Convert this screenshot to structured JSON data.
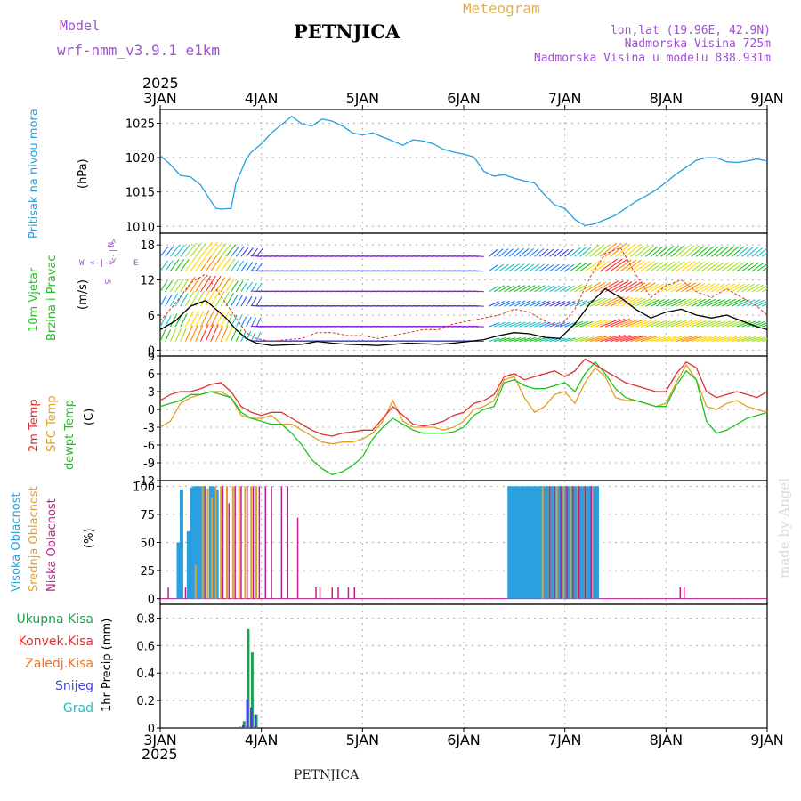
{
  "header": {
    "model_label": "Model",
    "model_name": "wrf-nmm_v3.9.1 e1km",
    "station": "PETNJICA",
    "meteogram_label": "Meteogram",
    "coords": "lon,lat (19.96E, 42.9N)",
    "elevation": "Nadmorska Visina 725m",
    "model_elevation": "Nadmorska Visina u modelu 838.931m",
    "year_top": "2025",
    "year_bottom": "2025",
    "footer_station": "PETNJICA",
    "credit": "made by Angel"
  },
  "legend": {
    "wind_dir": {
      "n": "N",
      "w": "W",
      "e": "E",
      "s": "S",
      "arrow_h": "<-|->",
      "arrow_v": "<-|->"
    }
  },
  "colors": {
    "pressure": "#22a0e0",
    "wind_speed": "#000000",
    "gust": "#e03020",
    "t2m": "#e03030",
    "sfc": "#e0a020",
    "dewpt": "#20c020",
    "cloud_high": "#2aa0e0",
    "cloud_mid": "#e0a030",
    "cloud_low": "#c0208a",
    "total_precip": "#20a050",
    "conv_precip": "#e03030",
    "frz_precip": "#f07020",
    "snow": "#4040e0",
    "hail": "#20c0c0",
    "model_text": "#a050d0",
    "meteogram_text": "#e0b050"
  },
  "chart_data": [
    {
      "id": "pressure",
      "type": "line",
      "ylabel_main": "Pritisak na nivou mora",
      "ylabel_unit": "(hPa)",
      "x_range": [
        0,
        6
      ],
      "x_ticks": [
        "3JAN",
        "4JAN",
        "5JAN",
        "6JAN",
        "7JAN",
        "8JAN",
        "9JAN"
      ],
      "ylim": [
        1009,
        1027
      ],
      "y_ticks": [
        1010,
        1015,
        1020,
        1025
      ],
      "grid": true,
      "series": [
        {
          "x": [
            0.0,
            0.1,
            0.2,
            0.3,
            0.4,
            0.5,
            0.55,
            0.6,
            0.7,
            0.75,
            0.8,
            0.85,
            0.9,
            1.0,
            1.1,
            1.2,
            1.3,
            1.4,
            1.5,
            1.6,
            1.7,
            1.8,
            1.9,
            2.0,
            2.1,
            2.2,
            2.3,
            2.4,
            2.5,
            2.6,
            2.7,
            2.8,
            2.9,
            3.0,
            3.1,
            3.2,
            3.3,
            3.4,
            3.5,
            3.6,
            3.7,
            3.8,
            3.9,
            4.0,
            4.1,
            4.2,
            4.3,
            4.4,
            4.5,
            4.6,
            4.7,
            4.8,
            4.9,
            5.0,
            5.1,
            5.2,
            5.3,
            5.4,
            5.5,
            5.6,
            5.7,
            5.8,
            5.9,
            6.0
          ],
          "y": [
            1020.3,
            1019.0,
            1017.4,
            1017.2,
            1016.0,
            1013.7,
            1012.6,
            1012.5,
            1012.6,
            1016.4,
            1018.0,
            1019.8,
            1020.8,
            1022.0,
            1023.6,
            1024.8,
            1026.0,
            1024.9,
            1024.6,
            1025.6,
            1025.3,
            1024.6,
            1023.6,
            1023.3,
            1023.6,
            1023.0,
            1022.4,
            1021.8,
            1022.6,
            1022.4,
            1022.0,
            1021.2,
            1020.8,
            1020.5,
            1020.1,
            1018.0,
            1017.3,
            1017.5,
            1017.0,
            1016.6,
            1016.3,
            1014.6,
            1013.1,
            1012.6,
            1011.0,
            1010.1,
            1010.4,
            1011.0,
            1011.6,
            1012.6,
            1013.6,
            1014.4,
            1015.3,
            1016.4,
            1017.6,
            1018.6,
            1019.6,
            1020.0,
            1020.0,
            1019.4,
            1019.3,
            1019.5,
            1019.8,
            1019.5
          ],
          "color": "#22a0e0"
        }
      ]
    },
    {
      "id": "wind",
      "type": "line",
      "ylabel_main": "10m Vjetar",
      "ylabel_sub": "Brzina i Pravac",
      "ylabel_unit": "(m/s)",
      "x_range": [
        0,
        6
      ],
      "ylim": [
        -1,
        20
      ],
      "y_ticks": [
        0,
        6,
        12,
        18
      ],
      "grid": true,
      "series": [
        {
          "name": "speed",
          "x": [
            0.0,
            0.15,
            0.3,
            0.45,
            0.55,
            0.65,
            0.75,
            0.85,
            0.95,
            1.1,
            1.25,
            1.4,
            1.55,
            1.7,
            1.85,
            2.0,
            2.15,
            2.3,
            2.45,
            2.6,
            2.75,
            2.9,
            3.05,
            3.2,
            3.35,
            3.5,
            3.65,
            3.8,
            3.95,
            4.1,
            4.25,
            4.4,
            4.55,
            4.7,
            4.85,
            5.0,
            5.15,
            5.3,
            5.45,
            5.6,
            5.75,
            5.9,
            6.0
          ],
          "y": [
            3.5,
            5.0,
            7.5,
            8.5,
            7.0,
            5.5,
            3.5,
            2.0,
            1.2,
            0.8,
            0.9,
            1.0,
            1.5,
            1.2,
            1.0,
            0.9,
            0.8,
            1.0,
            1.2,
            1.1,
            1.0,
            1.2,
            1.5,
            1.8,
            2.5,
            3.0,
            2.8,
            2.2,
            2.0,
            4.5,
            8.0,
            10.5,
            9.0,
            7.0,
            5.5,
            6.5,
            7.0,
            6.0,
            5.5,
            6.0,
            5.0,
            4.0,
            3.5
          ]
        },
        {
          "name": "gust",
          "x": [
            0.0,
            0.15,
            0.3,
            0.45,
            0.55,
            0.65,
            0.75,
            0.85,
            0.95,
            1.1,
            1.25,
            1.4,
            1.55,
            1.7,
            1.85,
            2.0,
            2.15,
            2.3,
            2.45,
            2.6,
            2.75,
            2.9,
            3.05,
            3.2,
            3.35,
            3.5,
            3.65,
            3.8,
            3.95,
            4.1,
            4.25,
            4.4,
            4.55,
            4.7,
            4.85,
            5.0,
            5.15,
            5.3,
            5.45,
            5.6,
            5.75,
            5.9,
            6.0
          ],
          "y": [
            5.0,
            8.0,
            11.5,
            13.0,
            10.5,
            8.0,
            5.5,
            3.0,
            2.0,
            1.5,
            1.8,
            2.0,
            3.0,
            3.0,
            2.5,
            2.5,
            2.0,
            2.5,
            3.0,
            3.5,
            3.5,
            4.5,
            5.0,
            5.5,
            6.0,
            7.0,
            6.5,
            5.0,
            4.0,
            7.0,
            12.5,
            16.5,
            17.5,
            13.0,
            9.0,
            11.0,
            12.0,
            10.0,
            9.0,
            10.5,
            9.0,
            7.5,
            6.0
          ]
        }
      ]
    },
    {
      "id": "temperature",
      "type": "line",
      "ylabel_main": "2m Temp",
      "ylabel_sub": "SFC Temp",
      "ylabel_sub2": "dewpt Temp",
      "ylabel_unit": "(C)",
      "x_range": [
        0,
        6
      ],
      "ylim": [
        -12,
        9
      ],
      "y_ticks": [
        -12,
        -9,
        -6,
        -3,
        0,
        3,
        6,
        9
      ],
      "grid": true,
      "series": [
        {
          "name": "2m",
          "x": [
            0.0,
            0.1,
            0.2,
            0.3,
            0.4,
            0.5,
            0.6,
            0.7,
            0.8,
            0.9,
            1.0,
            1.1,
            1.2,
            1.3,
            1.4,
            1.5,
            1.6,
            1.7,
            1.8,
            1.9,
            2.0,
            2.1,
            2.2,
            2.3,
            2.4,
            2.5,
            2.6,
            2.7,
            2.8,
            2.9,
            3.0,
            3.1,
            3.2,
            3.3,
            3.4,
            3.5,
            3.6,
            3.7,
            3.8,
            3.9,
            4.0,
            4.1,
            4.2,
            4.3,
            4.4,
            4.5,
            4.6,
            4.7,
            4.8,
            4.9,
            5.0,
            5.1,
            5.2,
            5.3,
            5.4,
            5.5,
            5.6,
            5.7,
            5.8,
            5.9,
            6.0
          ],
          "y": [
            1.5,
            2.5,
            3.0,
            3.0,
            3.5,
            4.2,
            4.5,
            3.0,
            0.5,
            -0.5,
            -1.0,
            -0.5,
            -0.5,
            -1.5,
            -2.5,
            -3.5,
            -4.2,
            -4.5,
            -4.0,
            -3.8,
            -3.5,
            -3.5,
            -1.5,
            0.5,
            -1.0,
            -2.5,
            -2.8,
            -2.5,
            -2.0,
            -1.0,
            -0.5,
            1.0,
            1.5,
            2.5,
            5.5,
            6.0,
            5.0,
            5.5,
            6.0,
            6.5,
            5.5,
            6.5,
            8.5,
            7.5,
            6.5,
            5.5,
            4.5,
            4.0,
            3.5,
            3.0,
            3.0,
            6.0,
            8.0,
            7.0,
            3.0,
            2.0,
            2.5,
            3.0,
            2.5,
            2.0,
            3.0
          ]
        },
        {
          "name": "sfc",
          "x": [
            0.0,
            0.1,
            0.2,
            0.3,
            0.4,
            0.5,
            0.6,
            0.7,
            0.8,
            0.9,
            1.0,
            1.1,
            1.2,
            1.3,
            1.4,
            1.5,
            1.6,
            1.7,
            1.8,
            1.9,
            2.0,
            2.1,
            2.2,
            2.3,
            2.4,
            2.5,
            2.6,
            2.7,
            2.8,
            2.9,
            3.0,
            3.1,
            3.2,
            3.3,
            3.4,
            3.5,
            3.6,
            3.7,
            3.8,
            3.9,
            4.0,
            4.1,
            4.2,
            4.3,
            4.4,
            4.5,
            4.6,
            4.7,
            4.8,
            4.9,
            5.0,
            5.1,
            5.2,
            5.3,
            5.4,
            5.5,
            5.6,
            5.7,
            5.8,
            5.9,
            6.0
          ],
          "y": [
            -3.0,
            -2.0,
            1.0,
            2.0,
            2.5,
            3.0,
            3.0,
            2.0,
            -1.0,
            -1.5,
            -1.5,
            -1.0,
            -2.5,
            -2.5,
            -3.5,
            -4.5,
            -5.5,
            -5.8,
            -5.5,
            -5.5,
            -5.0,
            -4.0,
            -2.0,
            1.5,
            -2.0,
            -3.0,
            -3.0,
            -3.0,
            -3.5,
            -3.0,
            -2.0,
            0.0,
            0.5,
            1.5,
            5.0,
            5.5,
            2.0,
            -0.5,
            0.5,
            2.5,
            3.0,
            1.0,
            4.5,
            7.0,
            5.5,
            2.0,
            1.5,
            1.5,
            1.0,
            0.5,
            1.0,
            4.5,
            7.5,
            5.0,
            0.5,
            0.0,
            1.0,
            1.5,
            0.5,
            0.0,
            -0.5
          ]
        },
        {
          "name": "dewpt",
          "x": [
            0.0,
            0.1,
            0.2,
            0.3,
            0.4,
            0.5,
            0.6,
            0.7,
            0.8,
            0.9,
            1.0,
            1.1,
            1.2,
            1.3,
            1.4,
            1.5,
            1.6,
            1.7,
            1.8,
            1.9,
            2.0,
            2.1,
            2.2,
            2.3,
            2.4,
            2.5,
            2.6,
            2.7,
            2.8,
            2.9,
            3.0,
            3.1,
            3.2,
            3.3,
            3.4,
            3.5,
            3.6,
            3.7,
            3.8,
            3.9,
            4.0,
            4.1,
            4.2,
            4.3,
            4.4,
            4.5,
            4.6,
            4.7,
            4.8,
            4.9,
            5.0,
            5.1,
            5.2,
            5.3,
            5.4,
            5.5,
            5.6,
            5.7,
            5.8,
            5.9,
            6.0
          ],
          "y": [
            0.5,
            1.0,
            1.5,
            2.5,
            2.5,
            3.0,
            2.5,
            2.0,
            -0.5,
            -1.5,
            -2.0,
            -2.5,
            -2.5,
            -4.0,
            -6.0,
            -8.5,
            -10.0,
            -11.0,
            -10.5,
            -9.5,
            -8.0,
            -5.0,
            -3.0,
            -1.5,
            -2.5,
            -3.5,
            -4.0,
            -4.0,
            -4.0,
            -3.8,
            -3.0,
            -1.0,
            0.0,
            0.5,
            4.5,
            5.0,
            4.0,
            3.5,
            3.5,
            4.0,
            4.5,
            3.0,
            6.0,
            8.0,
            6.0,
            3.5,
            2.0,
            1.5,
            1.0,
            0.5,
            0.5,
            4.0,
            6.5,
            5.0,
            -2.0,
            -4.0,
            -3.5,
            -2.5,
            -1.5,
            -1.0,
            -0.5
          ]
        }
      ]
    },
    {
      "id": "clouds",
      "type": "bar",
      "ylabel_main": "Visoka Oblacnost",
      "ylabel_sub": "Srednja Oblacnost",
      "ylabel_sub2": "Niska Oblacnost",
      "ylabel_unit": "(%)",
      "x_range": [
        0,
        6
      ],
      "ylim": [
        -5,
        105
      ],
      "y_ticks": [
        0,
        25,
        50,
        75,
        100
      ],
      "grid": true,
      "series": [
        {
          "name": "high",
          "x": [
            0.18,
            0.21,
            0.28,
            0.31,
            0.34,
            0.37,
            0.4,
            0.43,
            0.5,
            0.53,
            0.56,
            3.45,
            3.48,
            3.51,
            3.54,
            3.57,
            3.6,
            3.63,
            3.66,
            3.69,
            3.72,
            3.75,
            3.78,
            3.81,
            3.84,
            3.87,
            3.9,
            3.93,
            3.96,
            3.99,
            4.02,
            4.05,
            4.08,
            4.11,
            4.14,
            4.17,
            4.2,
            4.23,
            4.26,
            4.29,
            4.32
          ],
          "values": [
            50,
            97,
            60,
            99,
            100,
            100,
            100,
            100,
            100,
            100,
            97,
            100,
            100,
            100,
            100,
            100,
            100,
            100,
            100,
            100,
            100,
            100,
            100,
            100,
            100,
            100,
            100,
            100,
            100,
            100,
            100,
            100,
            100,
            100,
            100,
            100,
            100,
            100,
            100,
            100,
            100
          ]
        },
        {
          "name": "mid",
          "x": [
            0.35,
            0.42,
            0.47,
            0.51,
            0.55,
            0.6,
            0.66,
            0.72,
            0.78,
            0.84,
            0.9,
            0.95,
            3.78,
            3.85,
            3.92,
            3.99,
            4.06,
            4.13,
            4.2,
            4.27
          ],
          "values": [
            30,
            100,
            98,
            90,
            100,
            100,
            100,
            100,
            100,
            100,
            100,
            100,
            100,
            100,
            100,
            100,
            100,
            100,
            100,
            100
          ]
        },
        {
          "name": "low",
          "x": [
            0.08,
            0.25,
            0.45,
            0.62,
            0.68,
            0.74,
            0.8,
            0.86,
            0.92,
            0.98,
            1.04,
            1.1,
            1.2,
            1.26,
            1.36,
            1.54,
            1.58,
            1.7,
            1.76,
            1.86,
            1.92,
            3.85,
            3.9,
            3.96,
            4.02,
            4.08,
            4.14,
            4.2,
            4.26,
            5.14,
            5.18
          ],
          "values": [
            10,
            10,
            100,
            100,
            85,
            100,
            100,
            100,
            100,
            100,
            100,
            100,
            100,
            100,
            72,
            10,
            10,
            10,
            10,
            10,
            10,
            100,
            100,
            100,
            100,
            100,
            100,
            100,
            100,
            10,
            10
          ]
        }
      ]
    },
    {
      "id": "precip",
      "type": "bar",
      "ylabel_main": "1hr Precip (mm)",
      "legend_items": [
        "Ukupna Kisa",
        "Konvek.Kisa",
        "Zaledj.Kisa",
        "Snijeg",
        "Grad"
      ],
      "x_range": [
        0,
        6
      ],
      "x_ticks": [
        "3JAN",
        "4JAN",
        "5JAN",
        "6JAN",
        "7JAN",
        "8JAN",
        "9JAN"
      ],
      "ylim": [
        0,
        0.9
      ],
      "y_ticks": [
        0,
        0.2,
        0.4,
        0.6,
        0.8
      ],
      "grid": true,
      "series": [
        {
          "name": "total",
          "x": [
            0.79,
            0.83,
            0.87,
            0.91,
            0.95
          ],
          "values": [
            0.01,
            0.05,
            0.72,
            0.55,
            0.1
          ]
        },
        {
          "name": "snow",
          "x": [
            0.82,
            0.86,
            0.9,
            0.94
          ],
          "values": [
            0.02,
            0.21,
            0.15,
            0.1
          ]
        }
      ]
    }
  ]
}
